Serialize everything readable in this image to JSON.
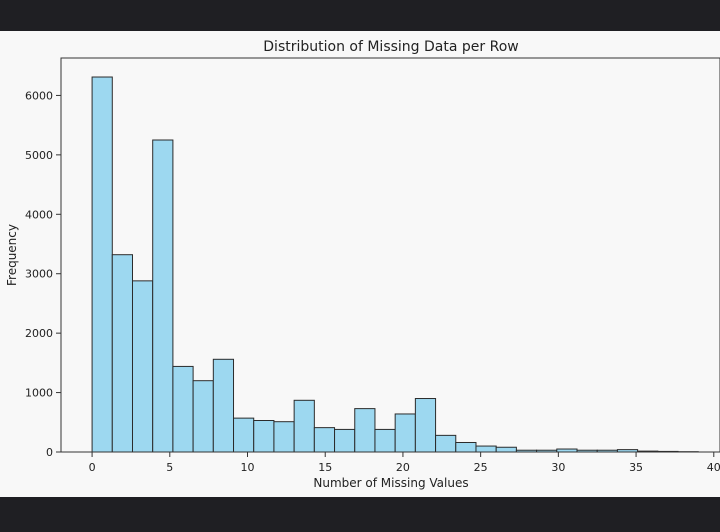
{
  "chart_data": {
    "type": "bar",
    "title": "Distribution of Missing Data per Row",
    "xlabel": "Number of Missing Values",
    "ylabel": "Frequency",
    "xlim": [
      -2,
      40.4
    ],
    "ylim": [
      0,
      6630
    ],
    "xticks": [
      0,
      5,
      10,
      15,
      20,
      25,
      30,
      35,
      40
    ],
    "yticks": [
      0,
      1000,
      2000,
      3000,
      4000,
      5000,
      6000
    ],
    "bin_width": 1.3,
    "bins": [
      {
        "x0": 0.0,
        "value": 6310
      },
      {
        "x0": 1.3,
        "value": 3320
      },
      {
        "x0": 2.6,
        "value": 2880
      },
      {
        "x0": 3.9,
        "value": 5250
      },
      {
        "x0": 5.2,
        "value": 1440
      },
      {
        "x0": 6.5,
        "value": 1200
      },
      {
        "x0": 7.8,
        "value": 1560
      },
      {
        "x0": 9.1,
        "value": 570
      },
      {
        "x0": 10.4,
        "value": 530
      },
      {
        "x0": 11.7,
        "value": 510
      },
      {
        "x0": 13.0,
        "value": 870
      },
      {
        "x0": 14.3,
        "value": 410
      },
      {
        "x0": 15.6,
        "value": 380
      },
      {
        "x0": 16.9,
        "value": 730
      },
      {
        "x0": 18.2,
        "value": 380
      },
      {
        "x0": 19.5,
        "value": 640
      },
      {
        "x0": 20.8,
        "value": 900
      },
      {
        "x0": 22.1,
        "value": 280
      },
      {
        "x0": 23.4,
        "value": 160
      },
      {
        "x0": 24.7,
        "value": 100
      },
      {
        "x0": 26.0,
        "value": 80
      },
      {
        "x0": 27.3,
        "value": 30
      },
      {
        "x0": 28.6,
        "value": 30
      },
      {
        "x0": 29.9,
        "value": 50
      },
      {
        "x0": 31.2,
        "value": 30
      },
      {
        "x0": 32.5,
        "value": 30
      },
      {
        "x0": 33.8,
        "value": 40
      },
      {
        "x0": 35.1,
        "value": 15
      },
      {
        "x0": 36.4,
        "value": 10
      },
      {
        "x0": 37.7,
        "value": 5
      }
    ],
    "bar_color": "#9dd8f0",
    "edge_color": "#2b2b2b",
    "grid": false,
    "legend": "none"
  }
}
